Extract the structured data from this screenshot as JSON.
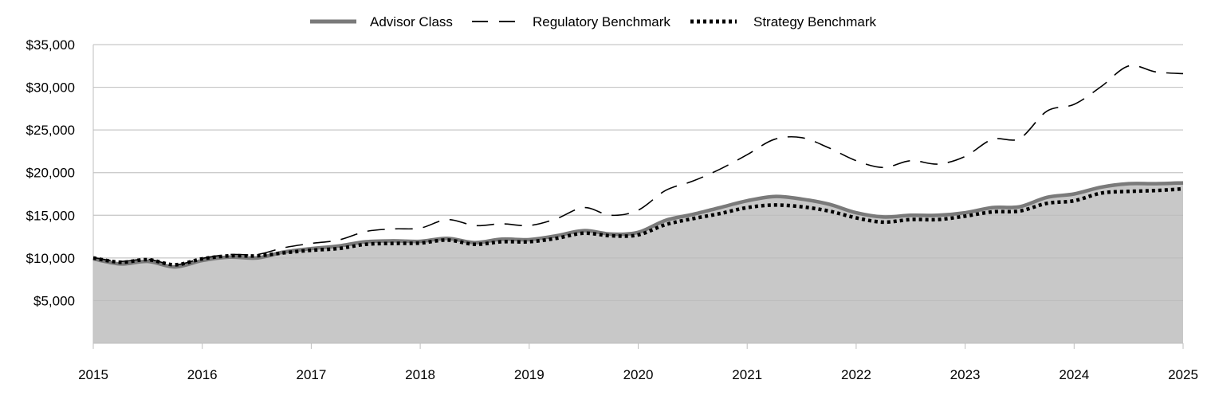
{
  "chart_data": {
    "type": "area",
    "title": "",
    "xlabel": "",
    "ylabel": "",
    "xlim": [
      2015,
      2025
    ],
    "ylim": [
      0,
      35000
    ],
    "grid": true,
    "legend_position": "top-center",
    "x_ticks": [
      {
        "value": 2015,
        "label": "2015"
      },
      {
        "value": 2016,
        "label": "2016"
      },
      {
        "value": 2017,
        "label": "2017"
      },
      {
        "value": 2018,
        "label": "2018"
      },
      {
        "value": 2019,
        "label": "2019"
      },
      {
        "value": 2020,
        "label": "2020"
      },
      {
        "value": 2021,
        "label": "2021"
      },
      {
        "value": 2022,
        "label": "2022"
      },
      {
        "value": 2023,
        "label": "2023"
      },
      {
        "value": 2024,
        "label": "2024"
      },
      {
        "value": 2025,
        "label": "2025"
      }
    ],
    "y_ticks": [
      {
        "value": 5000,
        "label": "$5,000"
      },
      {
        "value": 10000,
        "label": "$10,000"
      },
      {
        "value": 15000,
        "label": "$15,000"
      },
      {
        "value": 20000,
        "label": "$20,000"
      },
      {
        "value": 25000,
        "label": "$25,000"
      },
      {
        "value": 30000,
        "label": "$30,000"
      },
      {
        "value": 35000,
        "label": "$35,000"
      }
    ],
    "x": [
      2015.0,
      2015.25,
      2015.5,
      2015.75,
      2016.0,
      2016.25,
      2016.5,
      2016.75,
      2017.0,
      2017.25,
      2017.5,
      2017.75,
      2018.0,
      2018.25,
      2018.5,
      2018.75,
      2019.0,
      2019.25,
      2019.5,
      2019.75,
      2020.0,
      2020.25,
      2020.5,
      2020.75,
      2021.0,
      2021.25,
      2021.5,
      2021.75,
      2022.0,
      2022.25,
      2022.5,
      2022.75,
      2023.0,
      2023.25,
      2023.5,
      2023.75,
      2024.0,
      2024.25,
      2024.5,
      2024.75,
      2025.0
    ],
    "series": [
      {
        "name": "Advisor Class",
        "style": "solid-area",
        "color": "#7a7a7a",
        "fill": "#c8c8c8",
        "values": [
          9900,
          9300,
          9600,
          8950,
          9700,
          10100,
          10000,
          10700,
          11100,
          11400,
          11900,
          12000,
          11950,
          12300,
          11800,
          12200,
          12150,
          12600,
          13200,
          12800,
          13000,
          14400,
          15100,
          15900,
          16700,
          17200,
          16900,
          16300,
          15300,
          14800,
          15000,
          15000,
          15300,
          15900,
          16000,
          17100,
          17500,
          18300,
          18700,
          18700,
          18800
        ]
      },
      {
        "name": "Regulatory Benchmark",
        "style": "dashed",
        "color": "#000000",
        "values": [
          10050,
          9600,
          9850,
          9200,
          9950,
          10400,
          10400,
          11200,
          11700,
          12100,
          13100,
          13400,
          13500,
          14500,
          13800,
          14000,
          13800,
          14600,
          15900,
          15000,
          15600,
          17900,
          19000,
          20400,
          22100,
          23900,
          24100,
          22900,
          21400,
          20600,
          21400,
          21000,
          21900,
          23900,
          24000,
          27200,
          28000,
          30100,
          32500,
          31800,
          31600
        ]
      },
      {
        "name": "Strategy Benchmark",
        "style": "dotted",
        "color": "#000000",
        "values": [
          10000,
          9500,
          9800,
          9200,
          9900,
          10250,
          10250,
          10600,
          10900,
          11100,
          11600,
          11700,
          11750,
          12100,
          11600,
          11900,
          11900,
          12300,
          12900,
          12600,
          12700,
          13900,
          14600,
          15200,
          15900,
          16200,
          16000,
          15500,
          14700,
          14200,
          14500,
          14500,
          14900,
          15400,
          15500,
          16400,
          16700,
          17600,
          17800,
          17900,
          18100
        ]
      }
    ]
  }
}
